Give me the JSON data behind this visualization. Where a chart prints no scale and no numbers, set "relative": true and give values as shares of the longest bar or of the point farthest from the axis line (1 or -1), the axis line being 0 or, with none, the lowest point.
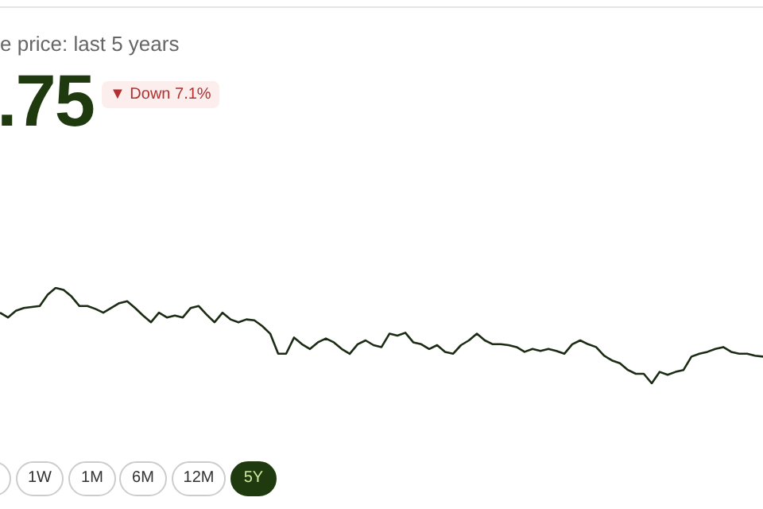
{
  "chart_data": {
    "type": "line",
    "relative": true,
    "title": "e price: last 5 years",
    "annotations": [
      ".75",
      "▼ Down 7.1%",
      "1W",
      "1M",
      "6M",
      "12M",
      "5Y"
    ],
    "categories": [
      null,
      null,
      null,
      null,
      null,
      null,
      null,
      null,
      null,
      null,
      null,
      null,
      null,
      null,
      null,
      null,
      null,
      null,
      null,
      null,
      null,
      null,
      null,
      null,
      null,
      null,
      null,
      null,
      null,
      null,
      null,
      null,
      null,
      null,
      null,
      null,
      null,
      null,
      null,
      null,
      null,
      null,
      null,
      null,
      null,
      null,
      null,
      null,
      null,
      null,
      null,
      null,
      null,
      null,
      null,
      null,
      null,
      null,
      null,
      null,
      null,
      null,
      null,
      null,
      null,
      null,
      null,
      null,
      null,
      null,
      null,
      null,
      null,
      null,
      null,
      null,
      null,
      null,
      null,
      null,
      null,
      null,
      null,
      null,
      null,
      null,
      null,
      null,
      null,
      null,
      null,
      null,
      null,
      null,
      null,
      null,
      null
    ],
    "series": [
      {
        "color": "#1c2b14",
        "values": [
          0.74,
          0.69,
          0.76,
          0.79,
          0.8,
          0.81,
          0.93,
          1,
          0.98,
          0.91,
          0.81,
          0.81,
          0.78,
          0.74,
          0.79,
          0.84,
          0.86,
          0.79,
          0.71,
          0.64,
          0.74,
          0.69,
          0.71,
          0.69,
          0.79,
          0.81,
          0.72,
          0.64,
          0.74,
          0.67,
          0.64,
          0.67,
          0.66,
          0.6,
          0.52,
          0.31,
          0.31,
          0.48,
          0.41,
          0.36,
          0.43,
          0.47,
          0.43,
          0.36,
          0.31,
          0.41,
          0.45,
          0.4,
          0.38,
          0.52,
          0.5,
          0.53,
          0.43,
          0.41,
          0.36,
          0.4,
          0.33,
          0.31,
          0.4,
          0.45,
          0.52,
          0.45,
          0.41,
          0.41,
          0.4,
          0.38,
          0.33,
          0.36,
          0.34,
          0.36,
          0.34,
          0.31,
          0.41,
          0.45,
          0.41,
          0.38,
          0.29,
          0.24,
          0.21,
          0.14,
          0.1,
          0.1,
          0,
          0.12,
          0.09,
          0.12,
          0.14,
          0.28,
          0.31,
          0.33,
          0.36,
          0.38,
          0.33,
          0.31,
          0.31,
          0.29,
          0.28
        ]
      }
    ],
    "marker": "none",
    "legend": false
  }
}
